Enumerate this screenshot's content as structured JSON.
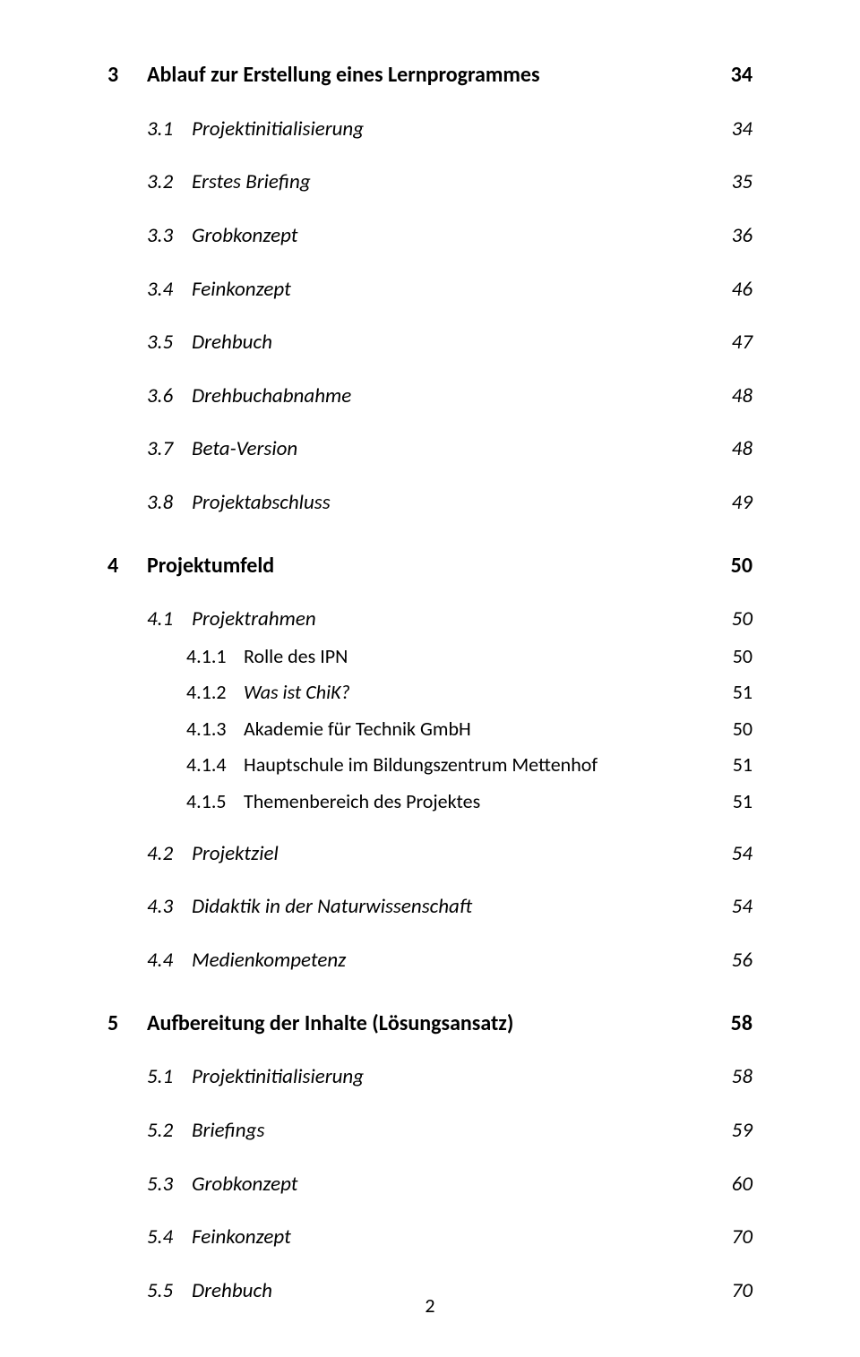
{
  "colors": {
    "text": "#000000",
    "background": "#ffffff"
  },
  "typography": {
    "font_family": "Calibri",
    "h_size_pt": 18,
    "sub_size_pt": 17,
    "leaf_size_pt": 16
  },
  "page_number": "2",
  "toc": {
    "s3": {
      "num": "3",
      "title": "Ablauf zur Erstellung eines Lernprogrammes",
      "page": "34",
      "items": [
        {
          "num": "3.1",
          "title": "Projektinitialisierung",
          "page": "34"
        },
        {
          "num": "3.2",
          "title": "Erstes Briefing",
          "page": "35"
        },
        {
          "num": "3.3",
          "title": "Grobkonzept",
          "page": "36"
        },
        {
          "num": "3.4",
          "title": "Feinkonzept",
          "page": "46"
        },
        {
          "num": "3.5",
          "title": "Drehbuch",
          "page": "47"
        },
        {
          "num": "3.6",
          "title": "Drehbuchabnahme",
          "page": "48"
        },
        {
          "num": "3.7",
          "title": "Beta-Version",
          "page": "48"
        },
        {
          "num": "3.8",
          "title": "Projektabschluss",
          "page": "49"
        }
      ]
    },
    "s4": {
      "num": "4",
      "title": "Projektumfeld",
      "page": "50",
      "i41": {
        "num": "4.1",
        "title": "Projektrahmen",
        "page": "50",
        "children": [
          {
            "num": "4.1.1",
            "title": "Rolle des IPN",
            "page": "50"
          },
          {
            "num": "4.1.2",
            "title": "Was ist ChiK?",
            "page": "51"
          },
          {
            "num": "4.1.3",
            "title": "Akademie für Technik GmbH",
            "page": "50"
          },
          {
            "num": "4.1.4",
            "title": "Hauptschule im Bildungszentrum Mettenhof",
            "page": "51"
          },
          {
            "num": "4.1.5",
            "title": "Themenbereich des Projektes",
            "page": "51"
          }
        ]
      },
      "i42": {
        "num": "4.2",
        "title": "Projektziel",
        "page": "54"
      },
      "i43": {
        "num": "4.3",
        "title": "Didaktik in der Naturwissenschaft",
        "page": "54"
      },
      "i44": {
        "num": "4.4",
        "title": "Medienkompetenz",
        "page": "56"
      }
    },
    "s5": {
      "num": "5",
      "title": "Aufbereitung der Inhalte (Lösungsansatz)",
      "page": "58",
      "items": [
        {
          "num": "5.1",
          "title": "Projektinitialisierung",
          "page": "58"
        },
        {
          "num": "5.2",
          "title": "Briefings",
          "page": "59"
        },
        {
          "num": "5.3",
          "title": "Grobkonzept",
          "page": "60"
        },
        {
          "num": "5.4",
          "title": "Feinkonzept",
          "page": "70"
        },
        {
          "num": "5.5",
          "title": "Drehbuch",
          "page": "70"
        }
      ]
    }
  }
}
